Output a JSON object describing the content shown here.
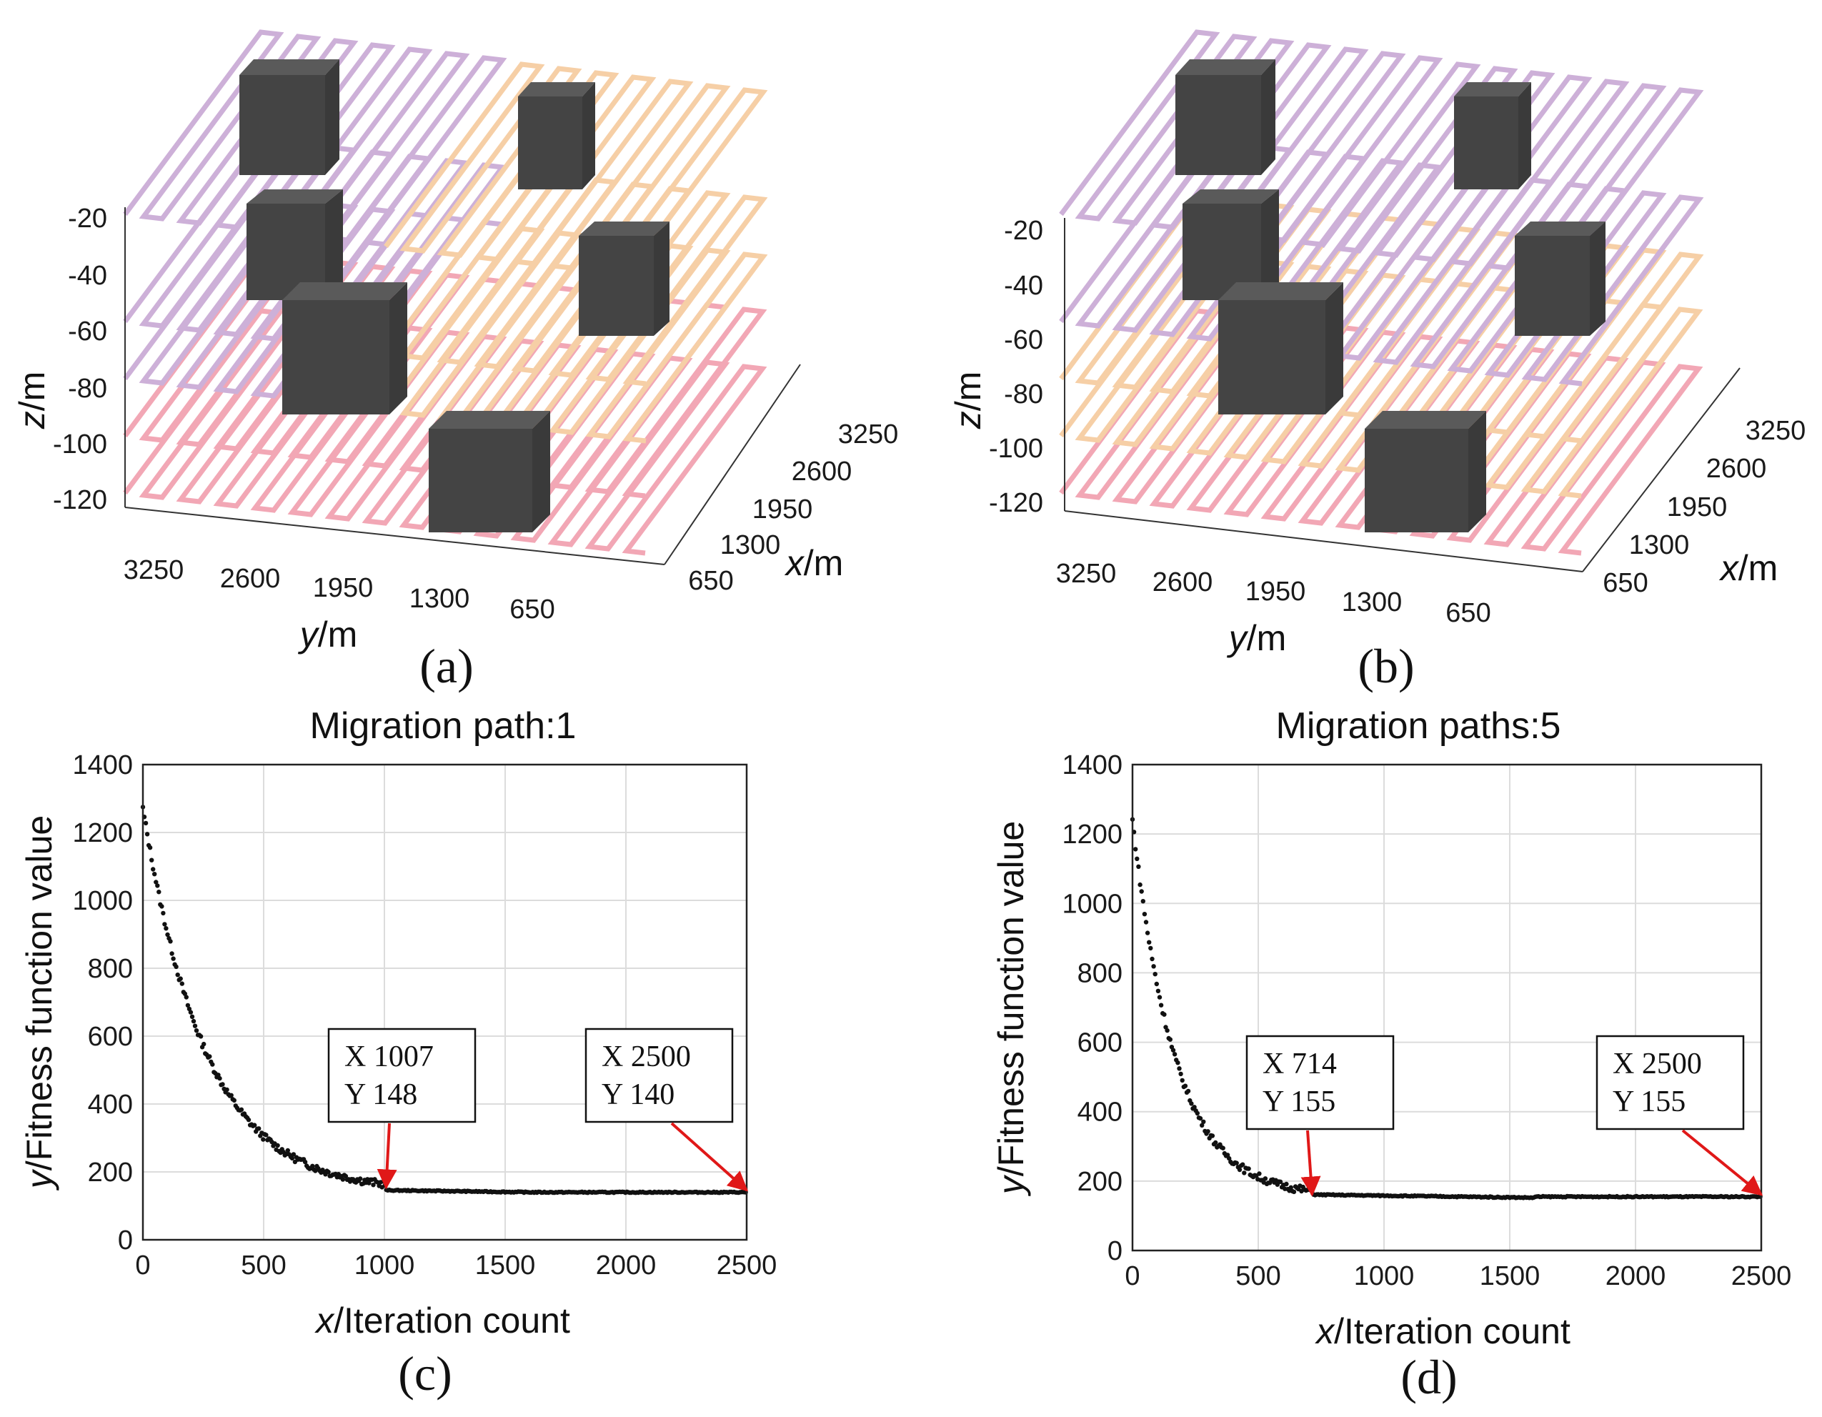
{
  "colors": {
    "layer_top": "#cdb0d8",
    "layer_mid": "#f6cfa6",
    "layer_bottom": "#f2a7b5",
    "obstacle": "#444444",
    "marker": "#111111",
    "arrow": "#e01818"
  },
  "panels3d": [
    {
      "caption": "(a)",
      "zlabel_var": "z",
      "zlabel_unit": "/m",
      "ylabel_var": "y",
      "ylabel_unit": "/m",
      "xlabel_var": "x",
      "xlabel_unit": "/m",
      "z_ticks": [
        "-20",
        "-40",
        "-60",
        "-80",
        "-100",
        "-120"
      ],
      "y_ticks": [
        "3250",
        "2600",
        "1950",
        "1300",
        "650"
      ],
      "x_ticks": [
        "3250",
        "2600",
        "1950",
        "1300",
        "650"
      ]
    },
    {
      "caption": "(b)",
      "zlabel_var": "z",
      "zlabel_unit": "/m",
      "ylabel_var": "y",
      "ylabel_unit": "/m",
      "xlabel_var": "x",
      "xlabel_unit": "/m",
      "z_ticks": [
        "-20",
        "-40",
        "-60",
        "-80",
        "-100",
        "-120"
      ],
      "y_ticks": [
        "3250",
        "2600",
        "1950",
        "1300",
        "650"
      ],
      "x_ticks": [
        "3250",
        "2600",
        "1950",
        "1300",
        "650"
      ]
    }
  ],
  "chart_data": [
    {
      "type": "scatter",
      "caption": "(c)",
      "title": "Migration path:1",
      "xlabel_var": "x",
      "xlabel_text": "/Iteration count",
      "ylabel_var": "y",
      "ylabel_text": "/Fitness function value",
      "xlim": [
        0,
        2500
      ],
      "ylim": [
        0,
        1400
      ],
      "xticks": [
        0,
        500,
        1000,
        1500,
        2000,
        2500
      ],
      "yticks": [
        0,
        200,
        400,
        600,
        800,
        1000,
        1200,
        1400
      ],
      "grid": true,
      "curve": {
        "start": 1270,
        "floor": 140,
        "decay": 260,
        "converge_x": 1007
      },
      "annotations": [
        {
          "x": 1007,
          "y": 148,
          "line1": "X  1007",
          "line2": "Y  148"
        },
        {
          "x": 2500,
          "y": 140,
          "line1": "X  2500",
          "line2": "Y  140"
        }
      ]
    },
    {
      "type": "scatter",
      "caption": "(d)",
      "title": "Migration paths:5",
      "xlabel_var": "x",
      "xlabel_text": "/Iteration count",
      "ylabel_var": "y",
      "ylabel_text": "/Fitness function value",
      "xlim": [
        0,
        2500
      ],
      "ylim": [
        0,
        1400
      ],
      "xticks": [
        0,
        500,
        1000,
        1500,
        2000,
        2500
      ],
      "yticks": [
        0,
        200,
        400,
        600,
        800,
        1000,
        1200,
        1400
      ],
      "grid": true,
      "curve": {
        "start": 1240,
        "floor": 155,
        "decay": 170,
        "converge_x": 714
      },
      "annotations": [
        {
          "x": 714,
          "y": 155,
          "line1": "X  714",
          "line2": "Y  155"
        },
        {
          "x": 2500,
          "y": 155,
          "line1": "X  2500",
          "line2": "Y  155"
        }
      ]
    }
  ]
}
